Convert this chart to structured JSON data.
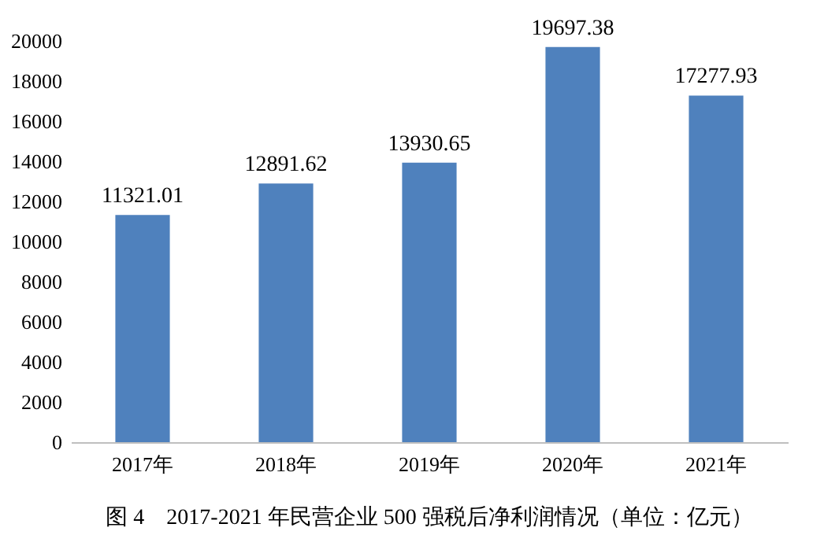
{
  "chart_data": {
    "type": "bar",
    "title": "图 4　2017-2021 年民营企业 500 强税后净利润情况（单位：亿元）",
    "categories": [
      "2017年",
      "2018年",
      "2019年",
      "2020年",
      "2021年"
    ],
    "values": [
      11321.01,
      12891.62,
      13930.65,
      19697.38,
      17277.93
    ],
    "color": "#4f81bd",
    "ylim": [
      0,
      20000
    ],
    "yticks": [
      0,
      2000,
      4000,
      6000,
      8000,
      10000,
      12000,
      14000,
      16000,
      18000,
      20000
    ],
    "grid": false,
    "data_labels": true
  }
}
